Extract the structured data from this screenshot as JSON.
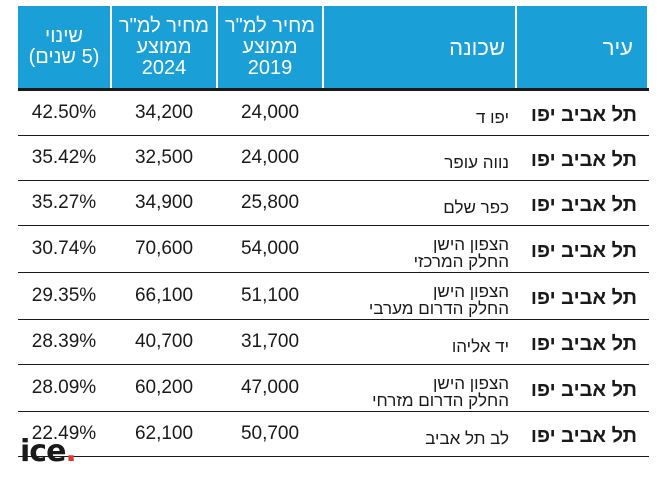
{
  "header": {
    "change": [
      "שינוי",
      "(5 שנים)"
    ],
    "price_2024": [
      "מחיר למ\"ר",
      "ממוצע",
      "2024"
    ],
    "price_2019": [
      "מחיר למ\"ר",
      "ממוצע",
      "2019"
    ],
    "neighborhood": "שכונה",
    "city": "עיר"
  },
  "rows": [
    {
      "change": "42.50%",
      "p2024": "34,200",
      "p2019": "24,000",
      "hood": [
        "יפו ד"
      ],
      "city": "תל אביב יפו"
    },
    {
      "change": "35.42%",
      "p2024": "32,500",
      "p2019": "24,000",
      "hood": [
        "נווה עופר"
      ],
      "city": "תל אביב יפו"
    },
    {
      "change": "35.27%",
      "p2024": "34,900",
      "p2019": "25,800",
      "hood": [
        "כפר שלם"
      ],
      "city": "תל אביב יפו"
    },
    {
      "change": "30.74%",
      "p2024": "70,600",
      "p2019": "54,000",
      "hood": [
        "הצפון הישן",
        "החלק המרכזי"
      ],
      "city": "תל אביב יפו"
    },
    {
      "change": "29.35%",
      "p2024": "66,100",
      "p2019": "51,100",
      "hood": [
        "הצפון הישן",
        "החלק הדרום מערבי"
      ],
      "city": "תל אביב יפו"
    },
    {
      "change": "28.39%",
      "p2024": "40,700",
      "p2019": "31,700",
      "hood": [
        "יד אליהו"
      ],
      "city": "תל אביב יפו"
    },
    {
      "change": "28.09%",
      "p2024": "60,200",
      "p2019": "47,000",
      "hood": [
        "הצפון הישן",
        "החלק הדרום מזרחי"
      ],
      "city": "תל אביב יפו"
    },
    {
      "change": "22.49%",
      "p2024": "62,100",
      "p2019": "50,700",
      "hood": [
        "לב תל אביב"
      ],
      "city": "תל אביב יפו"
    }
  ],
  "logo": {
    "text": "ice",
    "dot": "."
  },
  "colors": {
    "header_bg": "#1a9fd6",
    "logo_dot": "#e03a2e"
  }
}
